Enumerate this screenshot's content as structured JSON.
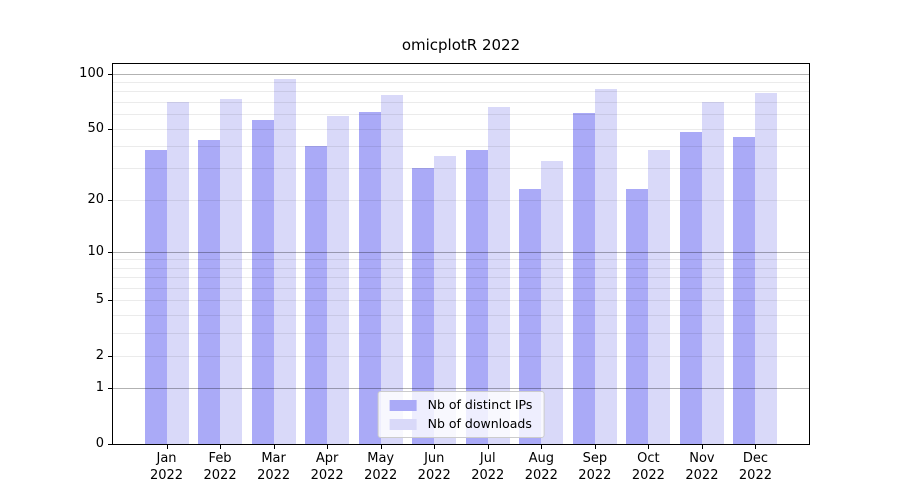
{
  "chart_data": {
    "type": "bar",
    "title": "omicplotR 2022",
    "y_scale": "log1p",
    "grid": true,
    "legend_position": "lower center",
    "xlabel": "",
    "ylabel": "",
    "categories": [
      "Jan 2022",
      "Feb 2022",
      "Mar 2022",
      "Apr 2022",
      "May 2022",
      "Jun 2022",
      "Jul 2022",
      "Aug 2022",
      "Sep 2022",
      "Oct 2022",
      "Nov 2022",
      "Dec 2022"
    ],
    "series": [
      {
        "name": "Nb of distinct IPs",
        "color": "#aaaaf7",
        "values": [
          38,
          43,
          56,
          40,
          62,
          30,
          38,
          23,
          61,
          23,
          48,
          45
        ]
      },
      {
        "name": "Nb of downloads",
        "color": "#d9d9f9",
        "values": [
          70,
          73,
          93,
          59,
          76,
          35,
          66,
          33,
          83,
          38,
          70,
          78
        ]
      }
    ],
    "ylim": [
      0,
      113
    ],
    "yticks": [
      0,
      1,
      2,
      5,
      10,
      20,
      50,
      100
    ],
    "grid_major": [
      1,
      10,
      100
    ],
    "grid_minor": [
      2,
      3,
      4,
      5,
      6,
      7,
      8,
      9,
      20,
      30,
      40,
      50,
      60,
      70,
      80,
      90
    ]
  },
  "colors": {
    "background": "#ffffff",
    "axis_frame": "#000000",
    "grid_major": "rgba(0,0,0,0.30)",
    "grid_minor": "rgba(0,0,0,0.08)",
    "legend_border": "#cccccc",
    "legend_background": "rgba(255,255,255,0.8)"
  }
}
